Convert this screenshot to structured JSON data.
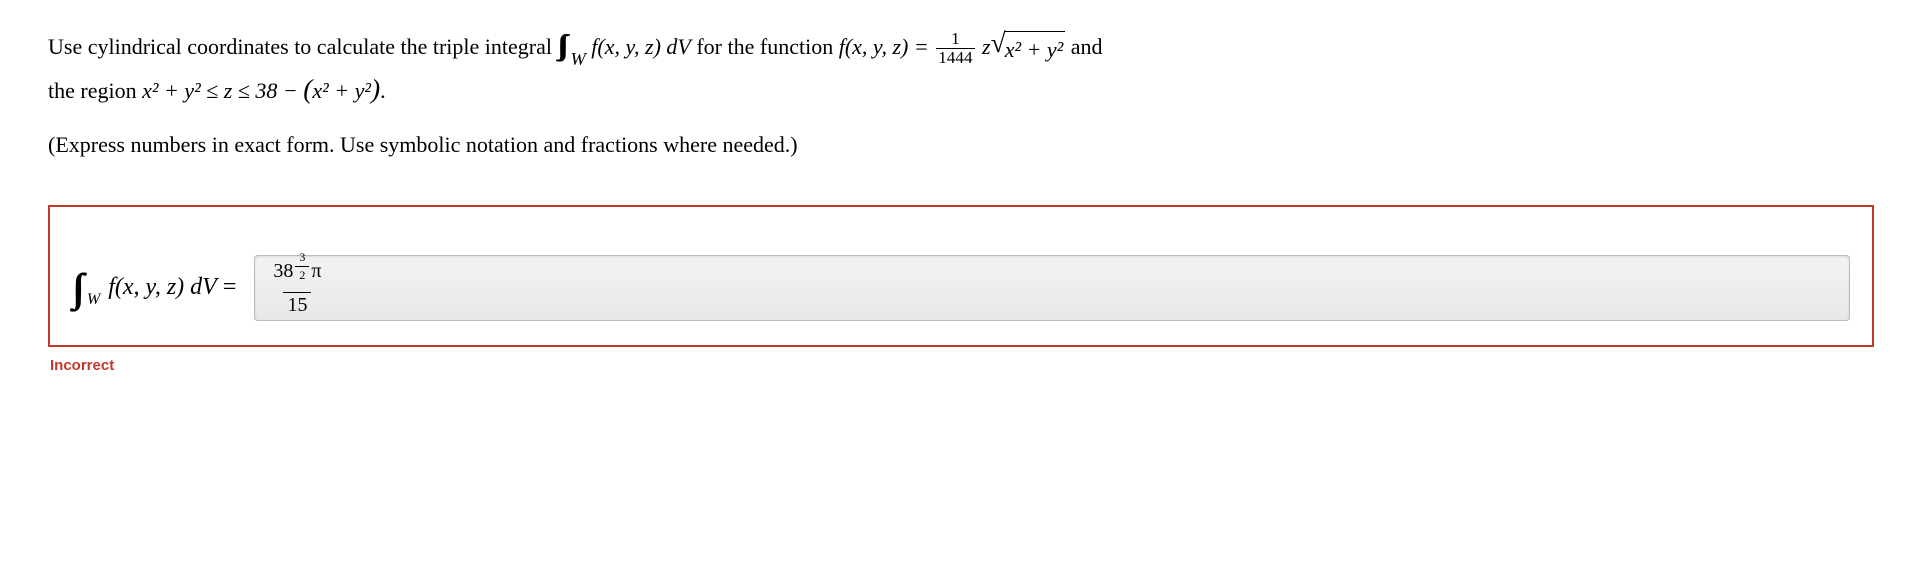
{
  "problem": {
    "intro": "Use cylindrical coordinates to calculate the triple integral ",
    "integral_expr": " f(x, y, z) dV",
    "for_text": " for the function ",
    "func_lhs": "f(x, y, z) = ",
    "frac_num": "1",
    "frac_den": "1444",
    "z_text": " z",
    "sqrt_body": "x² + y²",
    "and_text": " and",
    "line2_a": "the region ",
    "region_a": "x² + y² ≤ z ≤ 38 − ",
    "paren_open": "(",
    "paren_body": "x² + y²",
    "paren_close": ")",
    "period": "."
  },
  "hint": "(Express numbers in exact form. Use symbolic notation and fractions where needed.)",
  "answer": {
    "lhs_int_sub": "W",
    "lhs_body": "f(x, y, z) dV",
    "lhs_eq": " = ",
    "input_base": "38",
    "input_exp_num": "3",
    "input_exp_den": "2",
    "input_pi": "π",
    "input_denom": "15"
  },
  "feedback": "Incorrect",
  "style": {
    "accent_color": "#c0392b",
    "font_body": "Georgia, Times New Roman, serif"
  }
}
